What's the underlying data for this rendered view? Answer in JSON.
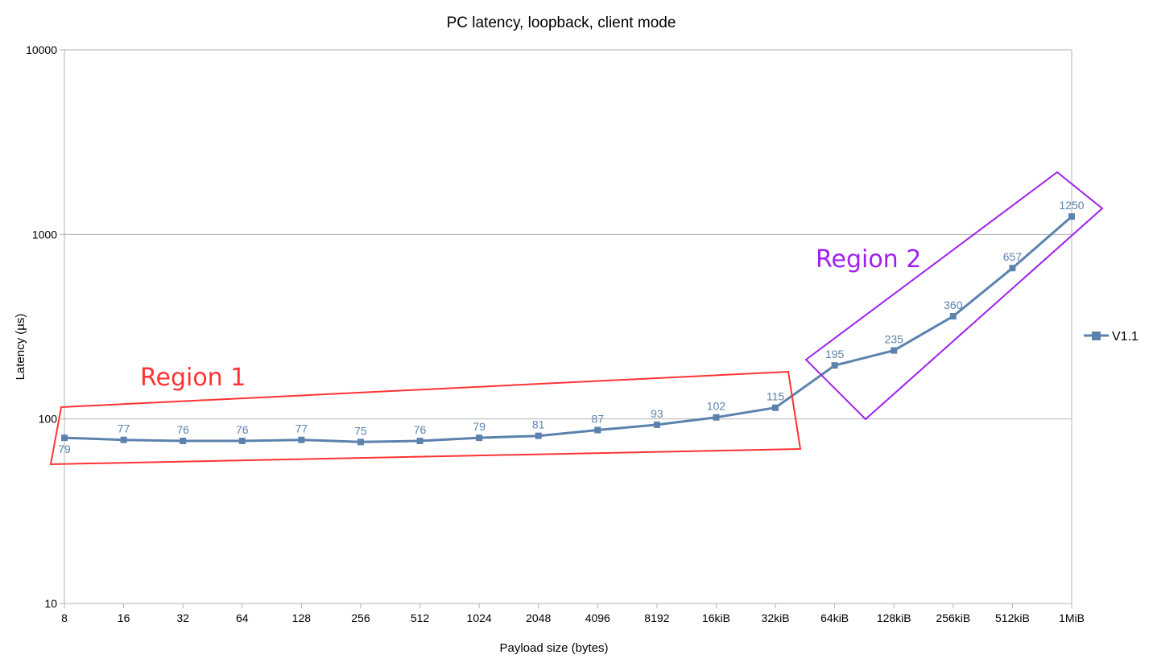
{
  "chart_data": {
    "type": "line",
    "title": "PC latency, loopback, client mode",
    "xlabel": "Payload size (bytes)",
    "ylabel": "Latency (µs)",
    "yscale": "log",
    "ylim": [
      10,
      10000
    ],
    "yticks": [
      "10",
      "100",
      "1000",
      "10000"
    ],
    "grid": true,
    "legend_position": "right",
    "categories": [
      "8",
      "16",
      "32",
      "64",
      "128",
      "256",
      "512",
      "1024",
      "2048",
      "4096",
      "8192",
      "16kiB",
      "32kiB",
      "64kiB",
      "128kiB",
      "256kiB",
      "512kiB",
      "1MiB"
    ],
    "series": [
      {
        "name": "V1.1",
        "color": "#5b82ad",
        "marker": "square",
        "values": [
          79,
          77,
          76,
          76,
          77,
          75,
          76,
          79,
          81,
          87,
          93,
          102,
          115,
          195,
          235,
          360,
          657,
          1250
        ]
      }
    ],
    "annotations": [
      {
        "label": "Region 1",
        "color": "#ff3333",
        "shape": "quadrilateral",
        "covers": [
          "8",
          "32kiB"
        ]
      },
      {
        "label": "Region 2",
        "color": "#a020f0",
        "shape": "quadrilateral",
        "covers": [
          "64kiB",
          "1MiB"
        ]
      }
    ]
  }
}
